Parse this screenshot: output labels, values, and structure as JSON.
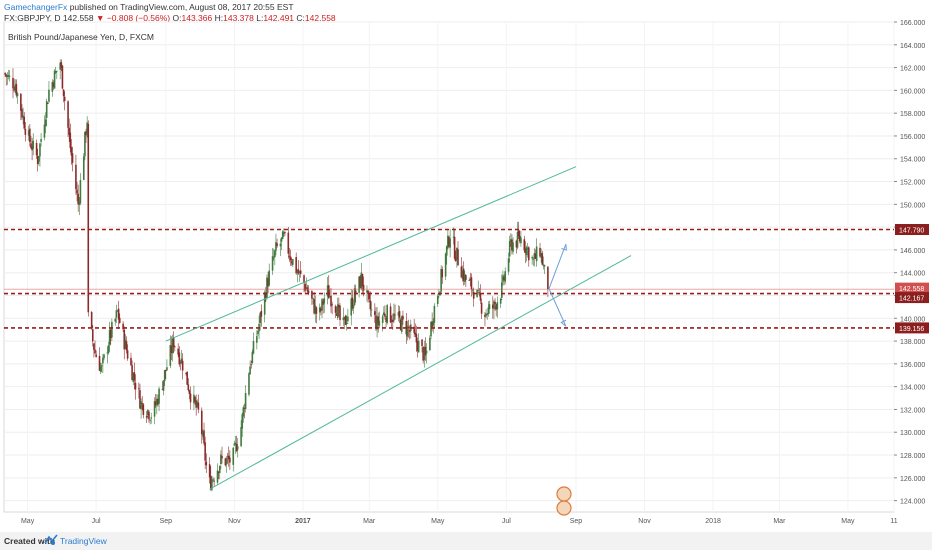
{
  "header": {
    "author": "GamechangerFx",
    "published": "published on TradingView.com, August 08, 2017 20:55 EST",
    "symbol": "FX:GBPJPY, D",
    "last": "142.558",
    "change": "−0.808 (−0.56%)",
    "o_label": "O:",
    "o": "143.366",
    "h_label": "H:",
    "h": "143.378",
    "l_label": "L:",
    "l": "142.491",
    "c_label": "C:",
    "c": "142.558"
  },
  "footer": {
    "created_with": "Created with",
    "brand": "TradingView"
  },
  "chart_data": {
    "type": "candlestick",
    "title": "British Pound/Japanese Yen, D, FXCM",
    "y_axis": {
      "min": 123.0,
      "max": 166.0,
      "ticks": [
        124.0,
        126.0,
        128.0,
        130.0,
        132.0,
        134.0,
        136.0,
        138.0,
        140.0,
        142.0,
        144.0,
        146.0,
        148.0,
        150.0,
        152.0,
        154.0,
        156.0,
        158.0,
        160.0,
        162.0,
        164.0,
        166.0
      ]
    },
    "x_axis": {
      "labels": [
        "May",
        "Jul",
        "Sep",
        "Nov",
        "2017",
        "Mar",
        "May",
        "Jul",
        "Sep",
        "Nov",
        "2018",
        "Mar",
        "May",
        "11"
      ],
      "range": [
        "2016-04-10",
        "2018-06-11"
      ]
    },
    "price_path": [
      [
        "2016-04-10",
        161.5
      ],
      [
        "2016-04-20",
        160.5
      ],
      [
        "2016-05-01",
        156.0
      ],
      [
        "2016-05-10",
        154.0
      ],
      [
        "2016-05-20",
        160.0
      ],
      [
        "2016-05-30",
        162.5
      ],
      [
        "2016-06-08",
        155.0
      ],
      [
        "2016-06-15",
        150.0
      ],
      [
        "2016-06-23",
        157.5
      ],
      [
        "2016-06-24",
        140.0
      ],
      [
        "2016-06-30",
        137.0
      ],
      [
        "2016-07-06",
        135.5
      ],
      [
        "2016-07-12",
        138.0
      ],
      [
        "2016-07-20",
        140.5
      ],
      [
        "2016-07-26",
        138.0
      ],
      [
        "2016-08-03",
        135.0
      ],
      [
        "2016-08-10",
        132.5
      ],
      [
        "2016-08-20",
        131.5
      ],
      [
        "2016-08-28",
        134.0
      ],
      [
        "2016-09-08",
        138.0
      ],
      [
        "2016-09-16",
        136.0
      ],
      [
        "2016-09-24",
        133.0
      ],
      [
        "2016-10-01",
        131.5
      ],
      [
        "2016-10-07",
        127.0
      ],
      [
        "2016-10-10",
        125.5
      ],
      [
        "2016-10-20",
        127.5
      ],
      [
        "2016-10-30",
        127.5
      ],
      [
        "2016-11-07",
        130.5
      ],
      [
        "2016-11-14",
        135.5
      ],
      [
        "2016-11-22",
        139.0
      ],
      [
        "2016-11-30",
        143.0
      ],
      [
        "2016-12-08",
        146.0
      ],
      [
        "2016-12-15",
        147.0
      ],
      [
        "2016-12-25",
        144.5
      ],
      [
        "2017-01-05",
        142.5
      ],
      [
        "2017-01-15",
        140.0
      ],
      [
        "2017-01-22",
        142.5
      ],
      [
        "2017-01-31",
        141.0
      ],
      [
        "2017-02-05",
        139.0
      ],
      [
        "2017-02-14",
        141.5
      ],
      [
        "2017-02-22",
        143.5
      ],
      [
        "2017-03-01",
        141.0
      ],
      [
        "2017-03-08",
        139.5
      ],
      [
        "2017-03-15",
        140.5
      ],
      [
        "2017-03-25",
        140.0
      ],
      [
        "2017-04-05",
        139.0
      ],
      [
        "2017-04-15",
        137.5
      ],
      [
        "2017-04-20",
        136.5
      ],
      [
        "2017-04-27",
        140.5
      ],
      [
        "2017-05-05",
        144.0
      ],
      [
        "2017-05-12",
        147.5
      ],
      [
        "2017-05-16",
        146.0
      ],
      [
        "2017-05-25",
        143.5
      ],
      [
        "2017-06-02",
        142.5
      ],
      [
        "2017-06-12",
        140.5
      ],
      [
        "2017-06-20",
        141.0
      ],
      [
        "2017-06-27",
        142.5
      ],
      [
        "2017-07-05",
        146.5
      ],
      [
        "2017-07-14",
        147.0
      ],
      [
        "2017-07-20",
        146.0
      ],
      [
        "2017-07-25",
        145.0
      ],
      [
        "2017-07-31",
        146.0
      ],
      [
        "2017-08-04",
        144.0
      ],
      [
        "2017-08-08",
        142.6
      ]
    ],
    "horizontal_levels": [
      147.79,
      142.167,
      139.156
    ],
    "last_price": 142.558,
    "price_labels": [
      "147.790",
      "142.558",
      "142.167",
      "139.156"
    ],
    "trendlines": [
      {
        "from": [
          "2016-09-01",
          138.0
        ],
        "to": [
          "2017-09-01",
          153.3
        ]
      },
      {
        "from": [
          "2016-10-10",
          125.0
        ],
        "to": [
          "2017-10-20",
          145.5
        ]
      }
    ],
    "projection_arrows": [
      {
        "from": [
          "2017-08-08",
          142.6
        ],
        "to": [
          "2017-08-23",
          146.5
        ]
      },
      {
        "from": [
          "2017-08-08",
          142.6
        ],
        "to": [
          "2017-08-23",
          139.3
        ]
      }
    ],
    "colors": {
      "up": "#3f7a3f",
      "down": "#8b2a2a",
      "level": "#9c1b1b",
      "trend": "#4fb89b",
      "arrow": "#6ea0d8",
      "last_price": "#d05050"
    }
  }
}
